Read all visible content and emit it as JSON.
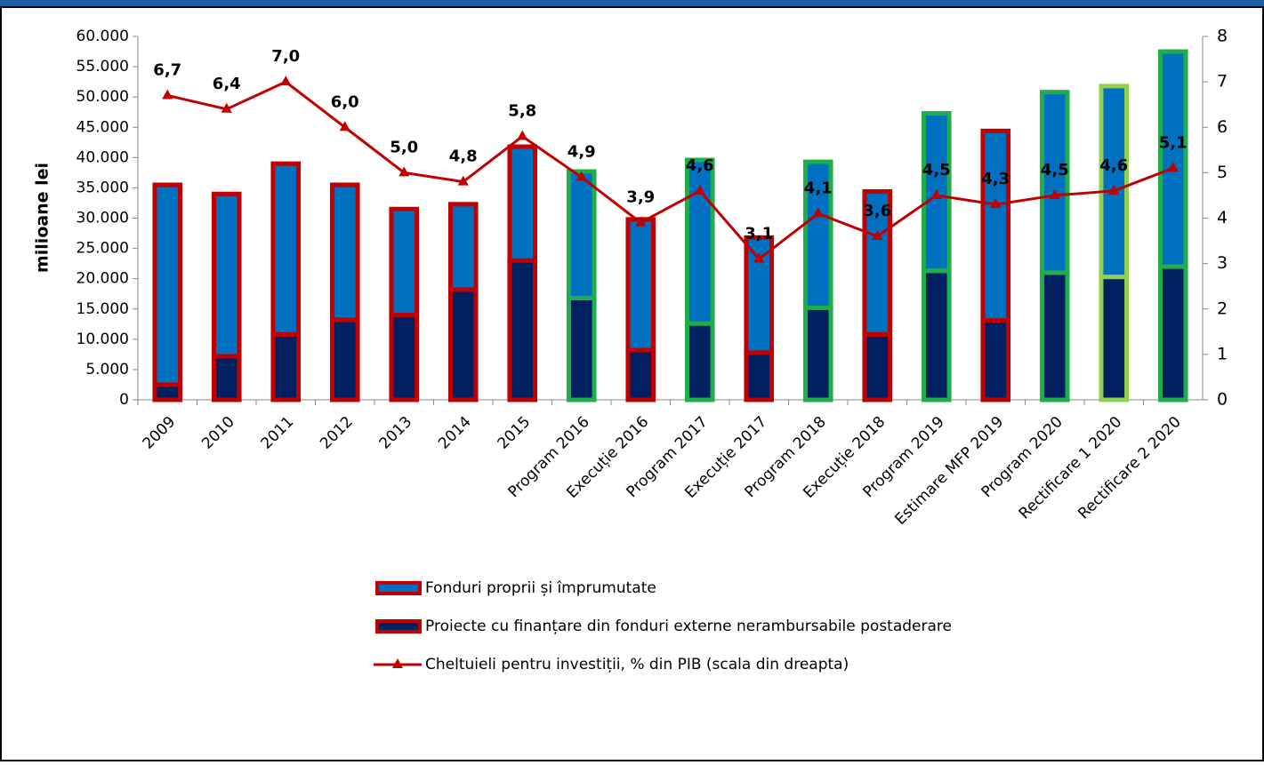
{
  "chart_data": {
    "type": "stacked-bar-line",
    "y_label": "milioane lei",
    "categories": [
      "2009",
      "2010",
      "2011",
      "2012",
      "2013",
      "2014",
      "2015",
      "Program 2016",
      "Execuție 2016",
      "Program 2017",
      "Execuție 2017",
      "Program 2018",
      "Execuție 2018",
      "Program 2019",
      "Estimare MFP 2019",
      "Program 2020",
      "Rectificare 1 2020",
      "Rectificare 2 2020"
    ],
    "outline_colors": [
      "#c00000",
      "#c00000",
      "#c00000",
      "#c00000",
      "#c00000",
      "#c00000",
      "#c00000",
      "#1fae4b",
      "#c00000",
      "#1fae4b",
      "#c00000",
      "#1fae4b",
      "#c00000",
      "#1fae4b",
      "#c00000",
      "#1fae4b",
      "#92d050",
      "#1fae4b"
    ],
    "series": [
      {
        "name": "Proiecte cu finanțare din fonduri externe nerambursabile postaderare",
        "color": "#002060",
        "kind": "bar",
        "values": [
          2500,
          7200,
          10800,
          13200,
          14000,
          18200,
          23000,
          16800,
          8200,
          12600,
          7800,
          15200,
          10800,
          21300,
          13100,
          21000,
          20300,
          22000
        ]
      },
      {
        "name": "Fonduri proprii și împrumutate",
        "color": "#0070c0",
        "kind": "bar",
        "values": [
          33000,
          26800,
          28200,
          22300,
          17500,
          14100,
          18800,
          20900,
          21600,
          27000,
          19000,
          24100,
          23600,
          26000,
          31300,
          29800,
          31500,
          35500
        ]
      },
      {
        "name": "Cheltuieli  pentru investiții, % din PIB (scala din dreapta)",
        "color": "#c00000",
        "kind": "line",
        "axis": "y2",
        "values": [
          6.7,
          6.4,
          7.0,
          6.0,
          5.0,
          4.8,
          5.8,
          4.9,
          3.9,
          4.6,
          3.1,
          4.1,
          3.6,
          4.5,
          4.3,
          4.5,
          4.6,
          5.1
        ],
        "value_labels": [
          "6,7",
          "6,4",
          "7,0",
          "6,0",
          "5,0",
          "4,8",
          "5,8",
          "4,9",
          "3,9",
          "4,6",
          "3,1",
          "4,1",
          "3,6",
          "4,5",
          "4,3",
          "4,5",
          "4,6",
          "5,1"
        ]
      }
    ],
    "ylim": [
      0,
      60000
    ],
    "yticks": [
      0,
      {
        "value": 5000,
        "label": "5.000"
      },
      {
        "value": 10000,
        "label": "10.000"
      },
      {
        "value": 15000,
        "label": "15.000"
      },
      {
        "value": 20000,
        "label": "20.000"
      },
      {
        "value": 25000,
        "label": "25.000"
      },
      {
        "value": 30000,
        "label": "30.000"
      },
      {
        "value": 35000,
        "label": "35.000"
      },
      {
        "value": 40000,
        "label": "40.000"
      },
      {
        "value": 45000,
        "label": "45.000"
      },
      {
        "value": 50000,
        "label": "50.000"
      },
      {
        "value": 55000,
        "label": "55.000"
      },
      {
        "value": 60000,
        "label": "60.000"
      }
    ],
    "y2lim": [
      0,
      8
    ],
    "y2ticks": [
      0,
      1,
      2,
      3,
      4,
      5,
      6,
      7,
      8
    ],
    "legend_order": [
      1,
      0,
      2
    ]
  }
}
